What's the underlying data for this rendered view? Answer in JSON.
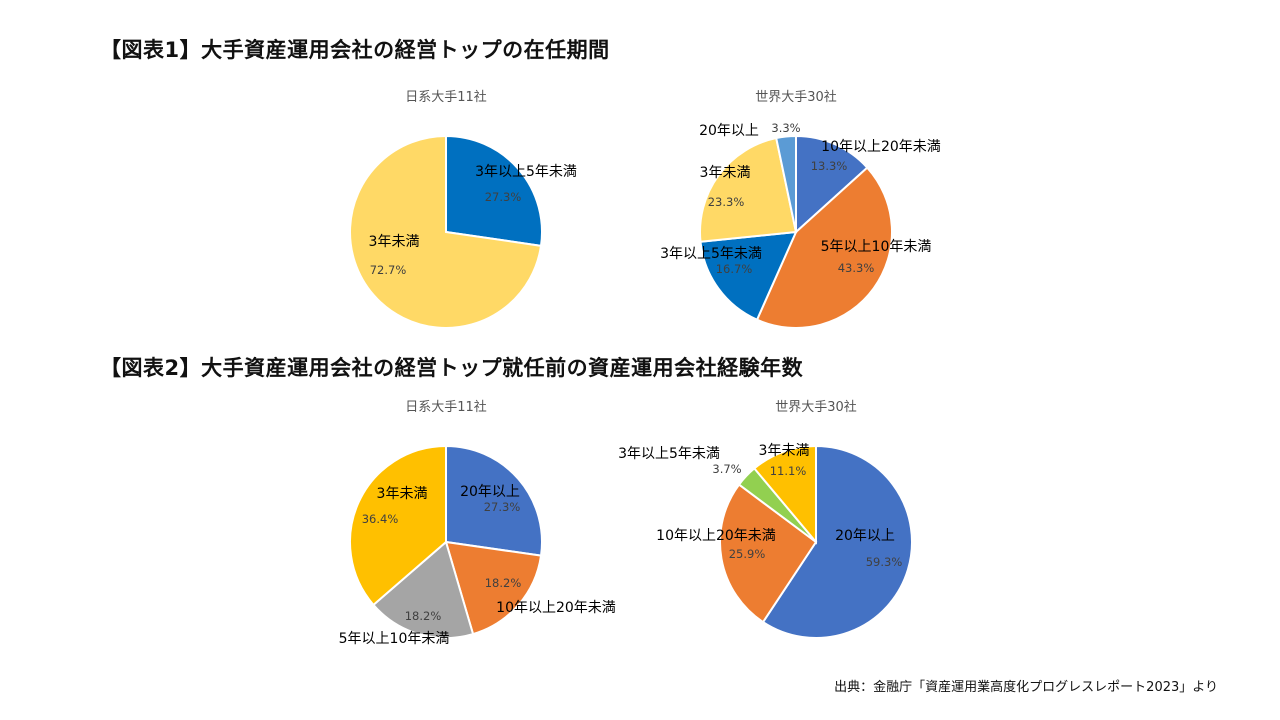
{
  "titles": {
    "fig1": "【図表1】大手資産運用会社の経営トップの在任期間",
    "fig2": "【図表2】大手資産運用会社の経営トップ就任前の資産運用会社経験年数"
  },
  "source": "出典：金融庁「資産運用業高度化プログレスレポート2023」より",
  "chart_data": [
    {
      "type": "pie",
      "title": "日系大手11社",
      "slices": [
        {
          "label": "3年以上5年未満",
          "value": 27.3,
          "value_label": "27.3%",
          "color": "#0070C0"
        },
        {
          "label": "3年未満",
          "value": 72.7,
          "value_label": "72.7%",
          "color": "#FFD966"
        }
      ]
    },
    {
      "type": "pie",
      "title": "世界大手30社",
      "slices": [
        {
          "label": "10年以上20年未満",
          "value": 13.3,
          "value_label": "13.3%",
          "color": "#4472C4"
        },
        {
          "label": "5年以上10年未満",
          "value": 43.3,
          "value_label": "43.3%",
          "color": "#ED7D31"
        },
        {
          "label": "3年以上5年未満",
          "value": 16.7,
          "value_label": "16.7%",
          "color": "#0070C0"
        },
        {
          "label": "3年未満",
          "value": 23.3,
          "value_label": "23.3%",
          "color": "#FFD966"
        },
        {
          "label": "20年以上",
          "value": 3.3,
          "value_label": "3.3%",
          "color": "#5B9BD5"
        }
      ]
    },
    {
      "type": "pie",
      "title": "日系大手11社",
      "slices": [
        {
          "label": "20年以上",
          "value": 27.3,
          "value_label": "27.3%",
          "color": "#4472C4"
        },
        {
          "label": "10年以上20年未満",
          "value": 18.2,
          "value_label": "18.2%",
          "color": "#ED7D31"
        },
        {
          "label": "5年以上10年未満",
          "value": 18.2,
          "value_label": "18.2%",
          "color": "#A5A5A5"
        },
        {
          "label": "3年未満",
          "value": 36.4,
          "value_label": "36.4%",
          "color": "#FFC000"
        }
      ]
    },
    {
      "type": "pie",
      "title": "世界大手30社",
      "slices": [
        {
          "label": "20年以上",
          "value": 59.3,
          "value_label": "59.3%",
          "color": "#4472C4"
        },
        {
          "label": "10年以上20年未満",
          "value": 25.9,
          "value_label": "25.9%",
          "color": "#ED7D31"
        },
        {
          "label": "3年以上5年未満",
          "value": 3.7,
          "value_label": "3.7%",
          "color": "#92D050"
        },
        {
          "label": "3年未満",
          "value": 11.1,
          "value_label": "11.1%",
          "color": "#FFC000"
        }
      ]
    }
  ]
}
